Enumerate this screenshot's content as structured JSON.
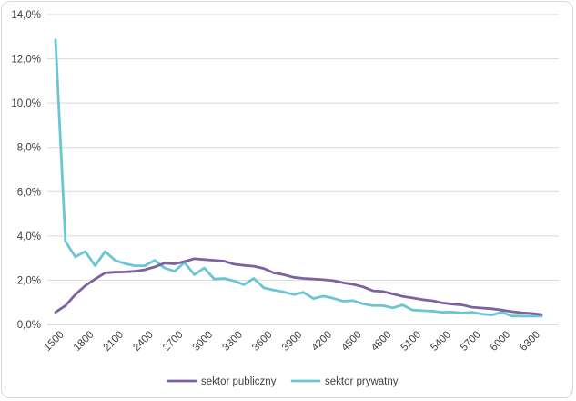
{
  "chart_data": {
    "type": "line",
    "title": "",
    "xlabel": "",
    "ylabel": "",
    "ylim": [
      0,
      14
    ],
    "y_ticks": [
      0,
      2,
      4,
      6,
      8,
      10,
      12,
      14
    ],
    "y_tick_labels": [
      "0,0%",
      "2,0%",
      "4,0%",
      "6,0%",
      "8,0%",
      "10,0%",
      "12,0%",
      "14,0%"
    ],
    "x_tick_labels": [
      "1500",
      "1800",
      "2100",
      "2400",
      "2700",
      "3000",
      "3300",
      "3600",
      "3900",
      "4200",
      "4500",
      "4800",
      "5100",
      "5400",
      "5700",
      "6000",
      "6300"
    ],
    "x": [
      1500,
      1600,
      1700,
      1800,
      1900,
      2000,
      2100,
      2200,
      2300,
      2400,
      2500,
      2600,
      2700,
      2800,
      2900,
      3000,
      3100,
      3200,
      3300,
      3400,
      3500,
      3600,
      3700,
      3800,
      3900,
      4000,
      4100,
      4200,
      4300,
      4400,
      4500,
      4600,
      4700,
      4800,
      4900,
      5000,
      5100,
      5200,
      5300,
      5400,
      5500,
      5600,
      5700,
      5800,
      5900,
      6000,
      6100,
      6200,
      6300,
      6400
    ],
    "grid": "horizontal",
    "legend_position": "bottom",
    "series": [
      {
        "name": "sektor publiczny",
        "color": "#7e61a0",
        "values": [
          0.55,
          0.85,
          1.35,
          1.75,
          2.05,
          2.33,
          2.36,
          2.37,
          2.4,
          2.47,
          2.6,
          2.77,
          2.74,
          2.84,
          2.97,
          2.93,
          2.9,
          2.86,
          2.72,
          2.67,
          2.63,
          2.53,
          2.33,
          2.25,
          2.13,
          2.08,
          2.05,
          2.02,
          1.98,
          1.88,
          1.81,
          1.7,
          1.52,
          1.49,
          1.38,
          1.27,
          1.2,
          1.12,
          1.07,
          0.97,
          0.92,
          0.88,
          0.78,
          0.74,
          0.71,
          0.65,
          0.58,
          0.53,
          0.5,
          0.45
        ]
      },
      {
        "name": "sektor prywatny",
        "color": "#6cc5d3",
        "values": [
          12.85,
          3.75,
          3.05,
          3.3,
          2.65,
          3.3,
          2.9,
          2.75,
          2.65,
          2.65,
          2.9,
          2.55,
          2.4,
          2.8,
          2.25,
          2.55,
          2.05,
          2.08,
          1.97,
          1.8,
          2.08,
          1.65,
          1.55,
          1.47,
          1.35,
          1.45,
          1.17,
          1.28,
          1.18,
          1.05,
          1.08,
          0.93,
          0.85,
          0.85,
          0.75,
          0.88,
          0.65,
          0.62,
          0.6,
          0.55,
          0.56,
          0.52,
          0.55,
          0.47,
          0.43,
          0.55,
          0.38,
          0.38,
          0.38,
          0.38
        ]
      }
    ]
  }
}
